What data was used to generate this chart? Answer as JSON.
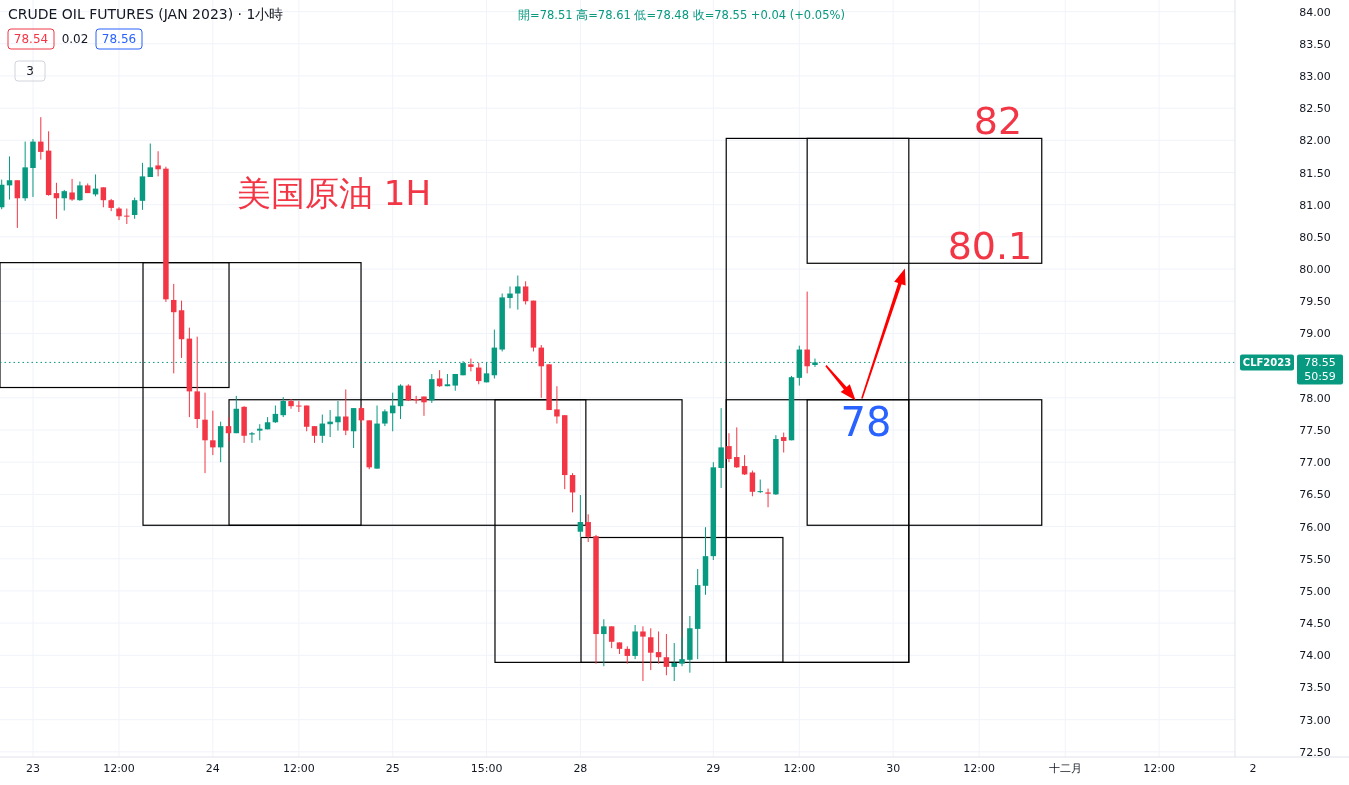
{
  "chart_data": {
    "type": "candlestick",
    "title": "CRUDE OIL FUTURES (JAN 2023) · 1小時",
    "subtitle": "開=78.51 高=78.61 低=78.48 收=78.55 +0.04 (+0.05%)",
    "categories": [
      null,
      null,
      null,
      null,
      "23",
      null,
      null,
      null,
      null,
      null,
      null,
      null,
      null,
      null,
      null,
      "12:00",
      null,
      null,
      null,
      null,
      null,
      null,
      null,
      null,
      null,
      null,
      null,
      "24",
      null,
      null,
      null,
      null,
      null,
      null,
      null,
      null,
      null,
      null,
      "12:00",
      null,
      null,
      null,
      null,
      null,
      null,
      null,
      null,
      null,
      null,
      null,
      "25",
      null,
      null,
      null,
      null,
      null,
      null,
      null,
      null,
      null,
      null,
      null,
      "15:00",
      null,
      null,
      null,
      null,
      null,
      null,
      null,
      null,
      null,
      null,
      null,
      "28",
      null,
      null,
      null,
      null,
      null,
      null,
      null,
      null,
      null,
      null,
      null,
      null,
      null,
      null,
      null,
      null,
      "29",
      null,
      null,
      null,
      null,
      null,
      null,
      null,
      null,
      null,
      null,
      "12:00",
      null,
      null,
      null,
      null,
      null,
      null,
      null,
      null,
      null,
      null,
      null,
      "30",
      null,
      null,
      null,
      null,
      null,
      null,
      null,
      null,
      null,
      null,
      "12:00",
      null,
      null,
      null,
      null,
      null,
      null,
      null,
      null,
      null,
      null,
      "十二月",
      null,
      null,
      null,
      null,
      null,
      null,
      null,
      null,
      null,
      null,
      null,
      "12:00",
      null,
      null,
      null,
      null,
      null,
      null,
      null,
      null,
      null,
      null,
      null,
      "2"
    ],
    "ohlc": [
      [
        80.96,
        81.39,
        80.93,
        81.31
      ],
      [
        81.3,
        81.75,
        81.08,
        81.38
      ],
      [
        81.38,
        81.38,
        80.64,
        81.1
      ],
      [
        81.1,
        81.98,
        81.06,
        81.58
      ],
      [
        81.57,
        82.02,
        81.12,
        81.98
      ],
      [
        81.98,
        82.36,
        81.7,
        81.82
      ],
      [
        81.84,
        82.14,
        81.14,
        81.15
      ],
      [
        81.18,
        81.34,
        80.78,
        81.1
      ],
      [
        81.1,
        81.23,
        80.91,
        81.21
      ],
      [
        81.19,
        81.4,
        81.06,
        81.08
      ],
      [
        81.07,
        81.36,
        81.06,
        81.3
      ],
      [
        81.3,
        81.33,
        81.18,
        81.18
      ],
      [
        81.16,
        81.47,
        81.13,
        81.25
      ],
      [
        81.27,
        81.27,
        80.96,
        81.07
      ],
      [
        81.07,
        81.09,
        80.9,
        80.95
      ],
      [
        80.94,
        80.96,
        80.76,
        80.82
      ],
      [
        80.83,
        80.94,
        80.7,
        80.82
      ],
      [
        80.84,
        81.11,
        80.78,
        81.07
      ],
      [
        81.06,
        81.65,
        80.92,
        81.44
      ],
      [
        81.43,
        81.95,
        81.43,
        81.58
      ],
      [
        81.61,
        81.83,
        81.44,
        81.55
      ],
      [
        81.56,
        81.59,
        79.49,
        79.53
      ],
      [
        79.52,
        79.77,
        78.38,
        79.33
      ],
      [
        79.36,
        79.51,
        78.62,
        78.91
      ],
      [
        78.92,
        79.09,
        77.7,
        78.1
      ],
      [
        78.1,
        78.95,
        77.53,
        77.67
      ],
      [
        77.66,
        78.08,
        76.83,
        77.34
      ],
      [
        77.34,
        77.8,
        77.11,
        77.23
      ],
      [
        77.23,
        77.63,
        77.0,
        77.56
      ],
      [
        77.56,
        77.7,
        77.33,
        77.45
      ],
      [
        77.45,
        78.03,
        77.45,
        77.83
      ],
      [
        77.86,
        77.87,
        77.3,
        77.41
      ],
      [
        77.43,
        77.47,
        77.3,
        77.45
      ],
      [
        77.49,
        77.59,
        77.34,
        77.52
      ],
      [
        77.51,
        77.7,
        77.51,
        77.62
      ],
      [
        77.62,
        77.88,
        77.61,
        77.75
      ],
      [
        77.73,
        78.01,
        77.7,
        77.95
      ],
      [
        77.95,
        77.98,
        77.83,
        77.87
      ],
      [
        77.88,
        77.95,
        77.78,
        77.87
      ],
      [
        77.88,
        77.88,
        77.48,
        77.55
      ],
      [
        77.56,
        77.56,
        77.3,
        77.41
      ],
      [
        77.41,
        77.74,
        77.3,
        77.6
      ],
      [
        77.59,
        77.81,
        77.39,
        77.63
      ],
      [
        77.62,
        77.95,
        77.49,
        77.71
      ],
      [
        77.71,
        78.13,
        77.42,
        77.49
      ],
      [
        77.48,
        77.84,
        77.22,
        77.84
      ],
      [
        77.84,
        77.87,
        77.61,
        77.65
      ],
      [
        77.65,
        77.65,
        76.89,
        76.92
      ],
      [
        76.9,
        77.88,
        76.9,
        77.6
      ],
      [
        77.6,
        77.82,
        77.56,
        77.79
      ],
      [
        77.76,
        78.08,
        77.48,
        77.88
      ],
      [
        77.87,
        78.21,
        77.67,
        78.19
      ],
      [
        78.19,
        78.21,
        77.95,
        77.96
      ],
      [
        77.98,
        78.03,
        77.91,
        77.96
      ],
      [
        78.02,
        78.02,
        77.72,
        77.93
      ],
      [
        77.96,
        78.37,
        77.92,
        78.29
      ],
      [
        78.3,
        78.43,
        78.17,
        78.18
      ],
      [
        78.18,
        78.37,
        78.18,
        78.21
      ],
      [
        78.19,
        78.37,
        78.11,
        78.37
      ],
      [
        78.35,
        78.57,
        78.35,
        78.54
      ],
      [
        78.52,
        78.61,
        78.41,
        78.48
      ],
      [
        78.47,
        78.54,
        78.21,
        78.26
      ],
      [
        78.24,
        78.55,
        78.24,
        78.38
      ],
      [
        78.35,
        79.06,
        78.3,
        78.78
      ],
      [
        78.75,
        79.62,
        78.72,
        79.56
      ],
      [
        79.55,
        79.73,
        79.39,
        79.62
      ],
      [
        79.62,
        79.9,
        79.37,
        79.73
      ],
      [
        79.73,
        79.81,
        79.45,
        79.5
      ],
      [
        79.51,
        79.51,
        78.72,
        78.78
      ],
      [
        78.78,
        78.82,
        78.0,
        78.49
      ],
      [
        78.52,
        78.52,
        77.81,
        77.81
      ],
      [
        77.82,
        78.18,
        77.6,
        77.71
      ],
      [
        77.73,
        77.73,
        76.58,
        76.8
      ],
      [
        76.8,
        76.83,
        76.22,
        76.53
      ],
      [
        75.92,
        76.49,
        75.84,
        76.07
      ],
      [
        76.07,
        76.19,
        75.76,
        75.84
      ],
      [
        75.85,
        75.87,
        73.87,
        74.33
      ],
      [
        74.33,
        74.56,
        73.83,
        74.45
      ],
      [
        74.45,
        74.45,
        74.11,
        74.21
      ],
      [
        74.2,
        74.2,
        74.02,
        74.1
      ],
      [
        74.1,
        74.14,
        73.87,
        73.99
      ],
      [
        73.99,
        74.47,
        73.94,
        74.37
      ],
      [
        74.37,
        74.45,
        73.6,
        74.29
      ],
      [
        74.28,
        74.42,
        73.77,
        74.04
      ],
      [
        74.05,
        74.37,
        73.87,
        73.97
      ],
      [
        73.97,
        74.33,
        73.69,
        73.82
      ],
      [
        73.82,
        74.19,
        73.6,
        73.88
      ],
      [
        73.87,
        74.28,
        73.83,
        73.94
      ],
      [
        73.93,
        74.61,
        73.73,
        74.42
      ],
      [
        74.41,
        75.34,
        73.94,
        75.09
      ],
      [
        75.08,
        75.99,
        74.94,
        75.54
      ],
      [
        75.54,
        77.0,
        75.48,
        76.92
      ],
      [
        76.91,
        77.84,
        76.6,
        77.23
      ],
      [
        77.25,
        77.45,
        77.0,
        77.05
      ],
      [
        77.08,
        77.54,
        76.91,
        76.92
      ],
      [
        76.94,
        77.11,
        76.8,
        76.81
      ],
      [
        76.84,
        76.87,
        76.47,
        76.54
      ],
      [
        76.54,
        76.73,
        76.52,
        76.55
      ],
      [
        76.53,
        76.59,
        76.3,
        76.51
      ],
      [
        76.5,
        77.42,
        76.49,
        77.36
      ],
      [
        77.39,
        77.46,
        77.15,
        77.33
      ],
      [
        77.34,
        78.34,
        77.34,
        78.32
      ],
      [
        78.31,
        78.81,
        78.19,
        78.75
      ],
      [
        78.75,
        79.65,
        78.38,
        78.49
      ],
      [
        78.51,
        78.61,
        78.48,
        78.55
      ],
      null,
      null,
      null,
      null,
      null,
      null,
      null,
      null,
      null,
      null,
      null,
      null,
      null,
      null,
      null,
      null,
      null,
      null,
      null,
      null,
      null,
      null,
      null,
      null,
      null,
      null,
      null,
      null,
      null,
      null,
      null,
      null,
      null,
      null,
      null,
      null,
      null,
      null,
      null,
      null,
      null,
      null,
      null,
      null,
      null,
      null,
      null,
      null,
      null,
      null,
      null,
      null,
      null,
      null,
      null,
      null
    ],
    "ylim": [
      72.42,
      84.18
    ],
    "yticks": [
      {
        "value": 72.5,
        "label": "72.50"
      },
      {
        "value": 73,
        "label": "73.00"
      },
      {
        "value": 73.5,
        "label": "73.50"
      },
      {
        "value": 74,
        "label": "74.00"
      },
      {
        "value": 74.5,
        "label": "74.50"
      },
      {
        "value": 75,
        "label": "75.00"
      },
      {
        "value": 75.5,
        "label": "75.50"
      },
      {
        "value": 76,
        "label": "76.00"
      },
      {
        "value": 76.5,
        "label": "76.50"
      },
      {
        "value": 77,
        "label": "77.00"
      },
      {
        "value": 77.5,
        "label": "77.50"
      },
      {
        "value": 78,
        "label": "78.00"
      },
      {
        "value": 79,
        "label": "79.00"
      },
      {
        "value": 79.5,
        "label": "79.50"
      },
      {
        "value": 80,
        "label": "80.00"
      },
      {
        "value": 80.5,
        "label": "80.50"
      },
      {
        "value": 81,
        "label": "81.00"
      },
      {
        "value": 81.5,
        "label": "81.50"
      },
      {
        "value": 82,
        "label": "82.00"
      },
      {
        "value": 82.5,
        "label": "82.50"
      },
      {
        "value": 83,
        "label": "83.00"
      },
      {
        "value": 83.5,
        "label": "83.50"
      },
      {
        "value": 84,
        "label": "84.00"
      }
    ],
    "grid": true,
    "ref_lines": [
      {
        "axis": "y",
        "value": 78.55,
        "label": "CLF2023",
        "color": "#089981",
        "line_style": "dotted"
      }
    ],
    "annotations": [
      "美国原油 1H",
      "82",
      "80.1",
      "78",
      "78.54",
      "0.02",
      "78.56",
      "3",
      "78.55",
      "50:59"
    ]
  }
}
